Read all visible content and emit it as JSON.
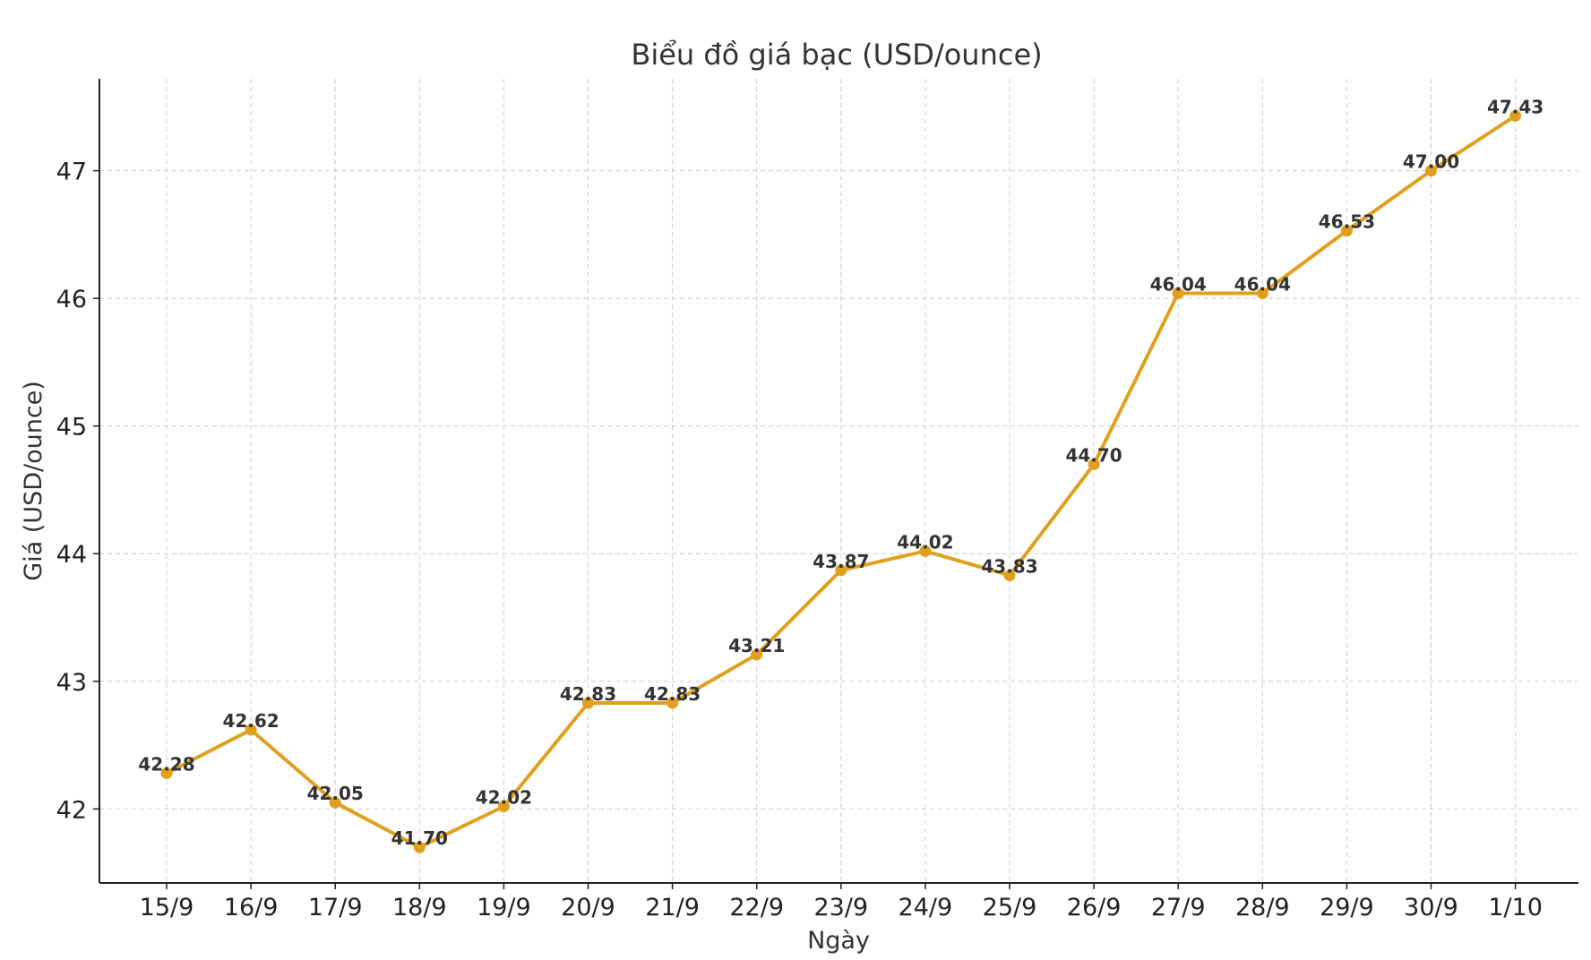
{
  "chart_data": {
    "type": "line",
    "title": "Biểu đồ giá bạc (USD/ounce)",
    "xlabel": "Ngày",
    "ylabel": "Giá (USD/ounce)",
    "categories": [
      "15/9",
      "16/9",
      "17/9",
      "18/9",
      "19/9",
      "20/9",
      "21/9",
      "22/9",
      "23/9",
      "24/9",
      "25/9",
      "26/9",
      "27/9",
      "28/9",
      "29/9",
      "30/9",
      "1/10"
    ],
    "series": [
      {
        "values": [
          42.28,
          42.62,
          42.05,
          41.7,
          42.02,
          42.83,
          42.83,
          43.21,
          43.87,
          44.02,
          43.83,
          44.7,
          46.04,
          46.04,
          46.53,
          47.0,
          47.43
        ],
        "labels": [
          "42.28",
          "42.62",
          "42.05",
          "41.70",
          "42.02",
          "42.83",
          "42.83",
          "43.21",
          "43.87",
          "44.02",
          "43.83",
          "44.70",
          "46.04",
          "46.04",
          "46.53",
          "47.00",
          "47.43"
        ],
        "color": "#e0a01e"
      }
    ],
    "yticks": [
      42,
      43,
      44,
      45,
      46,
      47
    ],
    "ylim": [
      41.42,
      47.72
    ],
    "grid": true
  }
}
